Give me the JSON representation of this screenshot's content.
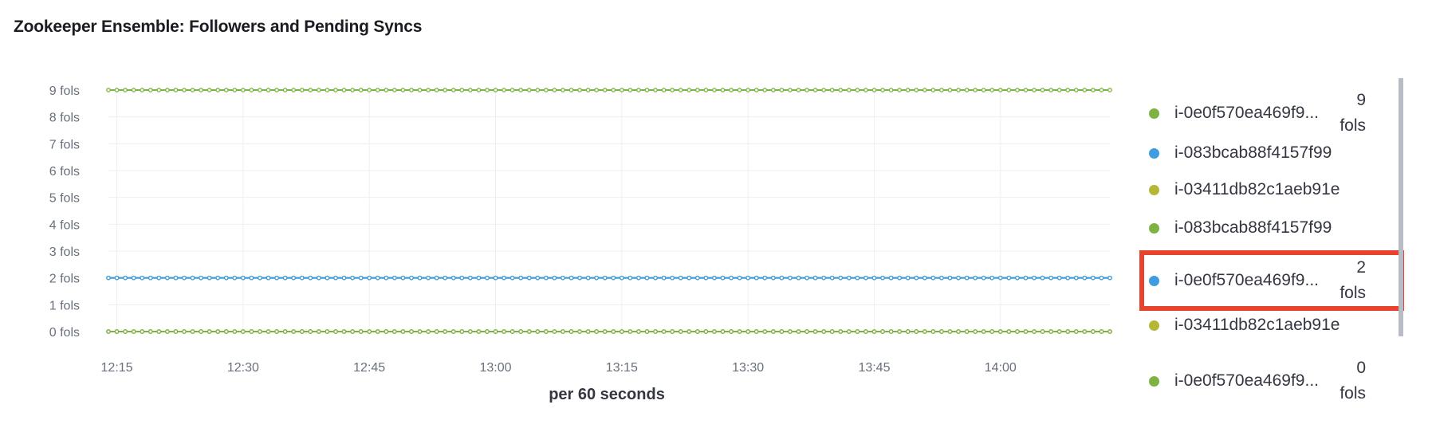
{
  "panel": {
    "title": "Zookeeper Ensemble: Followers and Pending Syncs"
  },
  "colors": {
    "green": "#7cb342",
    "blue": "#3d9ddf",
    "olive": "#b5b835",
    "highlight": "#e8432d",
    "grid": "#eeeff2"
  },
  "chart_data": {
    "type": "line",
    "xlabel": "per 60 seconds",
    "ylabel": "",
    "y_unit": "fols",
    "y_ticks": [
      "0 fols",
      "1 fols",
      "2 fols",
      "3 fols",
      "4 fols",
      "5 fols",
      "6 fols",
      "7 fols",
      "8 fols",
      "9 fols"
    ],
    "ylim": [
      0,
      9
    ],
    "x_ticks": [
      "12:15",
      "12:30",
      "12:45",
      "13:00",
      "13:15",
      "13:30",
      "13:45",
      "14:00"
    ],
    "x_start": "12:14",
    "x_end": "14:13",
    "interval_minutes": 1,
    "grid": true,
    "legend_position": "right",
    "series": [
      {
        "name": "i-0e0f570ea469f9...",
        "color": "#7cb342",
        "constant_value": 9
      },
      {
        "name": "i-083bcab88f4157f99",
        "color": "#3d9ddf",
        "constant_value": 2
      },
      {
        "name": "i-03411db82c1aeb91e",
        "color": "#b5b835",
        "constant_value": 2
      },
      {
        "name": "i-083bcab88f4157f99",
        "color": "#7cb342",
        "constant_value": 0
      },
      {
        "name": "i-0e0f570ea469f9...",
        "color": "#3d9ddf",
        "constant_value": 2
      },
      {
        "name": "i-03411db82c1aeb91e",
        "color": "#b5b835",
        "constant_value": 0
      },
      {
        "name": "i-0e0f570ea469f9...",
        "color": "#7cb342",
        "constant_value": 0
      }
    ]
  },
  "legend": {
    "items": [
      {
        "name": "i-0e0f570ea469f9...",
        "color": "#7cb342",
        "value": "9\nfols",
        "highlighted": false
      },
      {
        "name": "i-083bcab88f4157f99",
        "color": "#3d9ddf",
        "value": "",
        "highlighted": false
      },
      {
        "name": "i-03411db82c1aeb91e",
        "color": "#b5b835",
        "value": "",
        "highlighted": false
      },
      {
        "name": "i-083bcab88f4157f99",
        "color": "#7cb342",
        "value": "",
        "highlighted": false
      },
      {
        "name": "i-0e0f570ea469f9...",
        "color": "#3d9ddf",
        "value": "2\nfols",
        "highlighted": true
      },
      {
        "name": "i-03411db82c1aeb91e",
        "color": "#b5b835",
        "value": "",
        "highlighted": false
      },
      {
        "name": "i-0e0f570ea469f9...",
        "color": "#7cb342",
        "value": "0\nfols",
        "highlighted": false
      }
    ]
  }
}
